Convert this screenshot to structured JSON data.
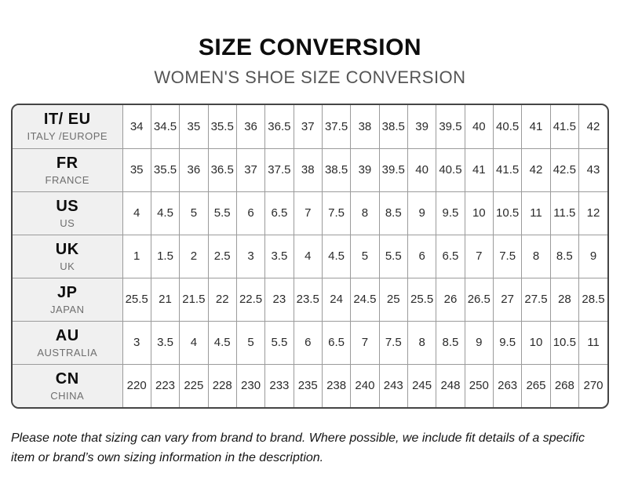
{
  "header": {
    "title": "SIZE CONVERSION",
    "subtitle": "WOMEN'S SHOE SIZE CONVERSION"
  },
  "chart_data": {
    "type": "table",
    "title": "SIZE CONVERSION",
    "subtitle": "WOMEN'S SHOE SIZE CONVERSION",
    "rows": [
      {
        "code": "IT/ EU",
        "region": "ITALY /EUROPE",
        "values": [
          "34",
          "34.5",
          "35",
          "35.5",
          "36",
          "36.5",
          "37",
          "37.5",
          "38",
          "38.5",
          "39",
          "39.5",
          "40",
          "40.5",
          "41",
          "41.5",
          "42"
        ]
      },
      {
        "code": "FR",
        "region": "FRANCE",
        "values": [
          "35",
          "35.5",
          "36",
          "36.5",
          "37",
          "37.5",
          "38",
          "38.5",
          "39",
          "39.5",
          "40",
          "40.5",
          "41",
          "41.5",
          "42",
          "42.5",
          "43"
        ]
      },
      {
        "code": "US",
        "region": "US",
        "values": [
          "4",
          "4.5",
          "5",
          "5.5",
          "6",
          "6.5",
          "7",
          "7.5",
          "8",
          "8.5",
          "9",
          "9.5",
          "10",
          "10.5",
          "11",
          "11.5",
          "12"
        ]
      },
      {
        "code": "UK",
        "region": "UK",
        "values": [
          "1",
          "1.5",
          "2",
          "2.5",
          "3",
          "3.5",
          "4",
          "4.5",
          "5",
          "5.5",
          "6",
          "6.5",
          "7",
          "7.5",
          "8",
          "8.5",
          "9"
        ]
      },
      {
        "code": "JP",
        "region": "JAPAN",
        "values": [
          "25.5",
          "21",
          "21.5",
          "22",
          "22.5",
          "23",
          "23.5",
          "24",
          "24.5",
          "25",
          "25.5",
          "26",
          "26.5",
          "27",
          "27.5",
          "28",
          "28.5"
        ]
      },
      {
        "code": "AU",
        "region": "AUSTRALIA",
        "values": [
          "3",
          "3.5",
          "4",
          "4.5",
          "5",
          "5.5",
          "6",
          "6.5",
          "7",
          "7.5",
          "8",
          "8.5",
          "9",
          "9.5",
          "10",
          "10.5",
          "11"
        ]
      },
      {
        "code": "CN",
        "region": "CHINA",
        "values": [
          "220",
          "223",
          "225",
          "228",
          "230",
          "233",
          "235",
          "238",
          "240",
          "243",
          "245",
          "248",
          "250",
          "263",
          "265",
          "268",
          "270"
        ]
      }
    ]
  },
  "footer": {
    "note": "Please note that sizing can vary from brand to brand. Where possible, we include fit details of a specific item or brand’s own sizing information in the description."
  },
  "colors": {
    "header_column_bg": "#f0f0f0",
    "outer_border": "#454545",
    "inner_border": "#9b9b9b",
    "subtitle_text": "#555555",
    "region_text": "#6e6e6e"
  }
}
